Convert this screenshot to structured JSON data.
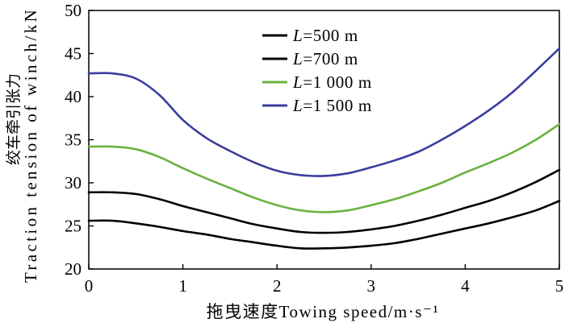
{
  "chart_data": {
    "type": "line",
    "xlabel": "拖曳速度Towing speed/m·s⁻¹",
    "ylabel": "绞车牵引张力Traction tension of winch/kN",
    "xlim": [
      0,
      5
    ],
    "ylim": [
      20,
      50
    ],
    "x_ticks": [
      0,
      1,
      2,
      3,
      4,
      5
    ],
    "y_ticks": [
      20,
      25,
      30,
      35,
      40,
      45,
      50
    ],
    "grid": false,
    "legend": "top-center",
    "x": [
      0,
      0.25,
      0.5,
      0.75,
      1,
      1.25,
      1.5,
      1.75,
      2,
      2.25,
      2.5,
      2.75,
      3,
      3.25,
      3.5,
      3.75,
      4,
      4.25,
      4.5,
      4.75,
      5
    ],
    "series": [
      {
        "name": "L=500 m",
        "color": "#000000",
        "values": [
          25.6,
          25.6,
          25.3,
          24.9,
          24.4,
          24.0,
          23.5,
          23.1,
          22.7,
          22.4,
          22.4,
          22.5,
          22.7,
          23.0,
          23.5,
          24.1,
          24.7,
          25.3,
          26.0,
          26.8,
          27.9
        ]
      },
      {
        "name": "L=700 m",
        "color": "#000000",
        "values": [
          28.9,
          28.9,
          28.7,
          28.1,
          27.3,
          26.6,
          25.9,
          25.2,
          24.7,
          24.3,
          24.2,
          24.3,
          24.6,
          25.0,
          25.6,
          26.3,
          27.1,
          27.9,
          28.9,
          30.1,
          31.5
        ]
      },
      {
        "name": "L=1 000 m",
        "color": "#6ab23e",
        "values": [
          34.2,
          34.2,
          33.9,
          33.0,
          31.7,
          30.5,
          29.4,
          28.3,
          27.4,
          26.8,
          26.6,
          26.8,
          27.4,
          28.1,
          29.0,
          30.0,
          31.2,
          32.3,
          33.5,
          35.0,
          36.8
        ]
      },
      {
        "name": "L=1 500 m",
        "color": "#3a3d9d",
        "values": [
          42.7,
          42.7,
          42.1,
          40.2,
          37.3,
          35.2,
          33.7,
          32.4,
          31.4,
          30.9,
          30.8,
          31.1,
          31.8,
          32.6,
          33.6,
          35.0,
          36.6,
          38.4,
          40.5,
          43.0,
          45.6
        ]
      }
    ]
  }
}
